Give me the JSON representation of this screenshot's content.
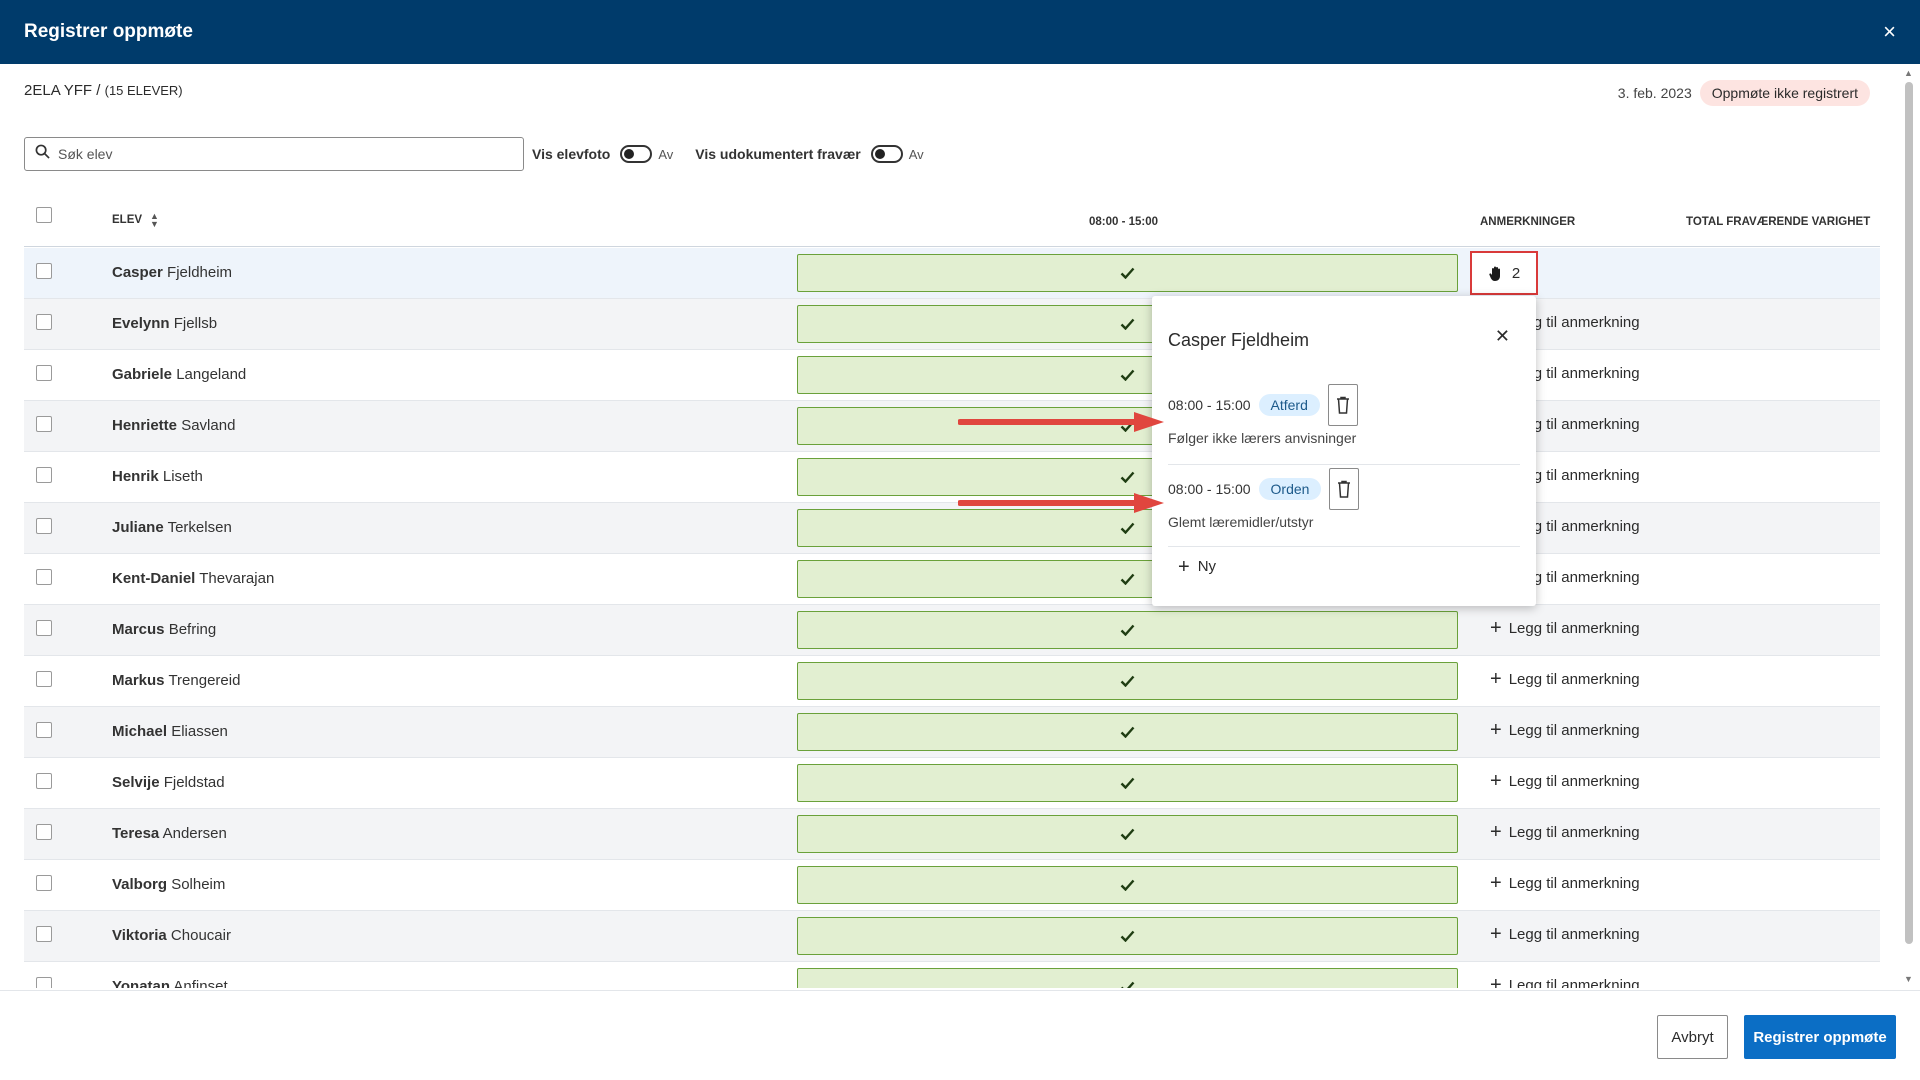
{
  "header": {
    "title": "Registrer oppmøte",
    "close_icon": "×"
  },
  "class_info": {
    "name": "2ELA YFF /",
    "count": "(15 ELEVER)"
  },
  "date_info": {
    "date": "3. feb. 2023",
    "status": "Oppmøte ikke registrert"
  },
  "toolbar": {
    "search_placeholder": "Søk elev",
    "photo_label": "Vis elevfoto",
    "photo_state": "Av",
    "undoc_label": "Vis udokumentert fravær",
    "undoc_state": "Av"
  },
  "table": {
    "col_student": "ELEV",
    "col_time": "08:00 - 15:00",
    "col_remarks": "ANMERKNINGER",
    "col_total": "TOTAL FRAVÆRENDE VARIGHET",
    "add_remark_label": "Legg til anmerkning",
    "remark_count": "2",
    "rows": [
      {
        "first": "Casper",
        "last": "Fjeldheim"
      },
      {
        "first": "Evelynn",
        "last": "Fjellsb"
      },
      {
        "first": "Gabriele",
        "last": "Langeland"
      },
      {
        "first": "Henriette",
        "last": "Savland"
      },
      {
        "first": "Henrik",
        "last": "Liseth"
      },
      {
        "first": "Juliane",
        "last": "Terkelsen"
      },
      {
        "first": "Kent-Daniel",
        "last": "Thevarajan"
      },
      {
        "first": "Marcus",
        "last": "Befring"
      },
      {
        "first": "Markus",
        "last": "Trengereid"
      },
      {
        "first": "Michael",
        "last": "Eliassen"
      },
      {
        "first": "Selvije",
        "last": "Fjeldstad"
      },
      {
        "first": "Teresa",
        "last": "Andersen"
      },
      {
        "first": "Valborg",
        "last": "Solheim"
      },
      {
        "first": "Viktoria",
        "last": "Choucair"
      },
      {
        "first": "Yonatan",
        "last": "Anfinset"
      }
    ]
  },
  "popover": {
    "title": "Casper Fjeldheim",
    "entries": [
      {
        "time": "08:00 - 15:00",
        "tag": "Atferd",
        "desc": "Følger ikke lærers anvisninger"
      },
      {
        "time": "08:00 - 15:00",
        "tag": "Orden",
        "desc": "Glemt læremidler/utstyr"
      }
    ],
    "new_label": "Ny"
  },
  "footer": {
    "cancel_label": "Avbryt",
    "submit_label": "Registrer oppmøte"
  },
  "colors": {
    "header_bg": "#003b6b",
    "present_fill": "#e2efd1",
    "present_border": "#6aa13a",
    "primary_button": "#0b6ec5",
    "highlight_red": "#d93a3a",
    "status_badge_bg": "#fde4e1"
  },
  "icons": {
    "search": "search-icon",
    "check": "check-icon",
    "hand": "hand-icon",
    "trash": "trash-icon",
    "plus": "plus-icon",
    "sort": "sort-icon",
    "close": "close-icon"
  }
}
